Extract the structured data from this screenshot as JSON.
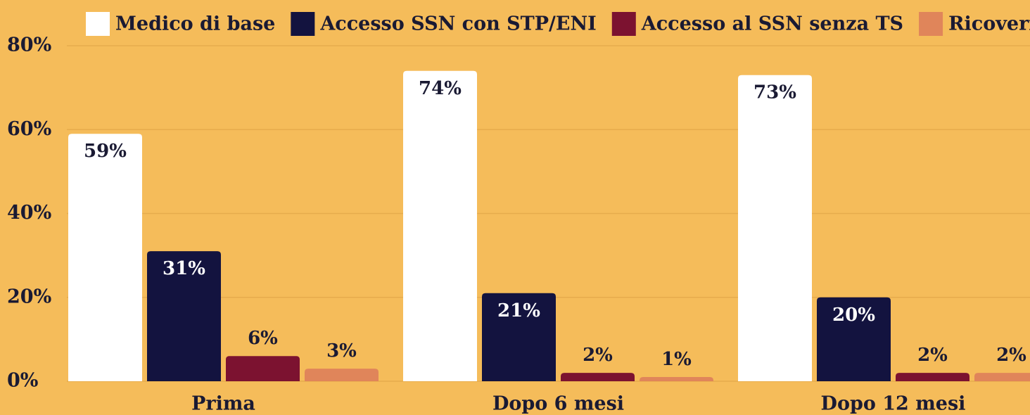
{
  "chart_data": {
    "type": "bar",
    "categories": [
      "Prima",
      "Dopo 6 mesi",
      "Dopo 12 mesi"
    ],
    "series": [
      {
        "name": "Medico di base",
        "color": "#ffffff",
        "values": [
          59,
          74,
          73
        ],
        "value_labels": [
          "59%",
          "74%",
          "73%"
        ]
      },
      {
        "name": "Accesso SSN con STP/ENI",
        "color": "#13133f",
        "values": [
          31,
          21,
          20
        ],
        "value_labels": [
          "31%",
          "21%",
          "20%"
        ]
      },
      {
        "name": "Accesso al SSN senza TS",
        "color": "#7c1230",
        "values": [
          6,
          2,
          2
        ],
        "value_labels": [
          "6%",
          "2%",
          "2%"
        ]
      },
      {
        "name": "Ricoveri",
        "color": "#e0855a",
        "values": [
          3,
          1,
          2
        ],
        "value_labels": [
          "3%",
          "1%",
          "2%"
        ]
      }
    ],
    "ylim": [
      0,
      80
    ],
    "yticks": [
      {
        "value": 0,
        "label": "0%"
      },
      {
        "value": 20,
        "label": "20%"
      },
      {
        "value": 40,
        "label": "40%"
      },
      {
        "value": 60,
        "label": "60%"
      },
      {
        "value": 80,
        "label": "80%"
      }
    ],
    "grid": true,
    "legend": "top"
  }
}
